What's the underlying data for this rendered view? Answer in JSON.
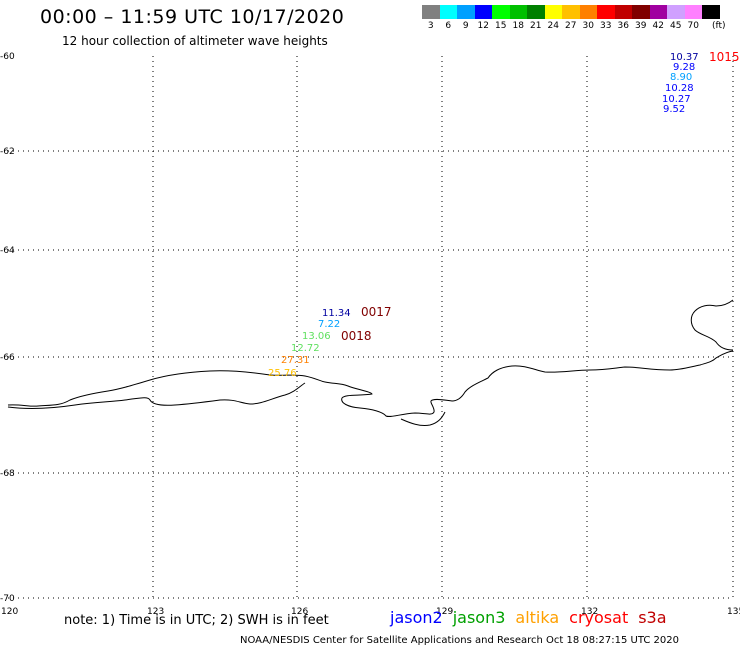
{
  "header": {
    "title": "00:00 – 11:59 UTC 10/17/2020",
    "subtitle": "12 hour collection of altimeter wave heights"
  },
  "scale": {
    "unit": "(ft)",
    "colors": [
      {
        "color": "#808080",
        "label": "3"
      },
      {
        "color": "#00ffff",
        "label": "6"
      },
      {
        "color": "#00a0ff",
        "label": "9"
      },
      {
        "color": "#0000ff",
        "label": "12"
      },
      {
        "color": "#00ff00",
        "label": "15"
      },
      {
        "color": "#00c000",
        "label": "18"
      },
      {
        "color": "#008000",
        "label": "21"
      },
      {
        "color": "#ffff00",
        "label": "24"
      },
      {
        "color": "#ffc000",
        "label": "27"
      },
      {
        "color": "#ff8000",
        "label": "30"
      },
      {
        "color": "#ff0000",
        "label": "33"
      },
      {
        "color": "#c00000",
        "label": "36"
      },
      {
        "color": "#800000",
        "label": "39"
      },
      {
        "color": "#a000a0",
        "label": "42"
      },
      {
        "color": "#d0a0ff",
        "label": "45"
      },
      {
        "color": "#ff80ff",
        "label": "70"
      },
      {
        "color": "#000000",
        "label": ""
      }
    ]
  },
  "axes": {
    "lon_ticks": [
      "120",
      "123",
      "126",
      "129",
      "132",
      "135"
    ],
    "lat_ticks": [
      "-60",
      "-62",
      "-64",
      "-66",
      "-68",
      "-68",
      "-70"
    ]
  },
  "observations": [
    {
      "text": "10.37",
      "color": "#0000a0"
    },
    {
      "text": "9.28",
      "color": "#0000ff"
    },
    {
      "text": "8.90",
      "color": "#00a0ff"
    },
    {
      "text": "10.28",
      "color": "#0000ff"
    },
    {
      "text": "10.27",
      "color": "#0000ff"
    },
    {
      "text": "9.52",
      "color": "#0000ff"
    },
    {
      "text": "11.34",
      "color": "#0000a0"
    },
    {
      "text": "7.22",
      "color": "#00a0ff"
    },
    {
      "text": "13.06",
      "color": "#60e060"
    },
    {
      "text": "12.72",
      "color": "#60e060"
    },
    {
      "text": "27.31",
      "color": "#ff8000"
    },
    {
      "text": "25.76",
      "color": "#ffc000"
    }
  ],
  "time_labels": [
    {
      "text": "1015",
      "color": "#ff0000"
    },
    {
      "text": "0017",
      "color": "#800000"
    },
    {
      "text": "0018",
      "color": "#800000"
    }
  ],
  "footer": {
    "note": "note: 1) Time is in UTC; 2) SWH is in feet",
    "credit": "NOAA/NESDIS Center for Satellite Applications and Research    Oct 18 08:27:15 UTC 2020",
    "satellites": [
      {
        "name": "jason2",
        "color": "#0000ff"
      },
      {
        "name": "jason3",
        "color": "#00a000"
      },
      {
        "name": "altika",
        "color": "#ffa000"
      },
      {
        "name": "cryosat",
        "color": "#ff0000"
      },
      {
        "name": "s3a",
        "color": "#c00000"
      }
    ]
  }
}
